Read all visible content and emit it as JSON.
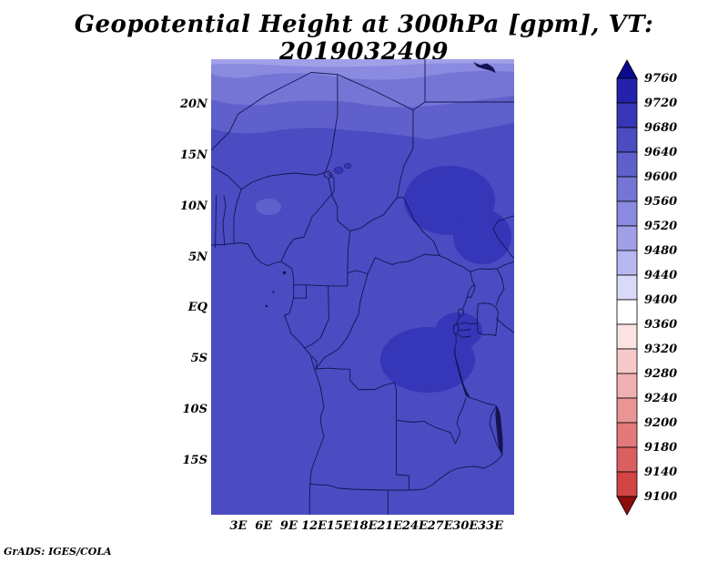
{
  "header": {
    "title": "Geopotential Height at 300hPa [gpm], VT: 2019032409"
  },
  "footer": {
    "credit": "GrADS: IGES/COLA"
  },
  "chart_data": {
    "type": "heatmap",
    "title": "Geopotential Height at 300hPa [gpm], VT: 2019032409",
    "variable": "Geopotential Height",
    "pressure_level": "300hPa",
    "units": "gpm",
    "valid_time": "2019032409",
    "xlabel": "",
    "ylabel": "",
    "x_axis": {
      "ticks": [
        "3E",
        "6E",
        "9E",
        "12E",
        "15E",
        "18E",
        "21E",
        "24E",
        "27E",
        "30E",
        "33E"
      ]
    },
    "y_axis": {
      "ticks": [
        "20N",
        "15N",
        "10N",
        "5N",
        "EQ",
        "5S",
        "10S",
        "15S"
      ]
    },
    "colorbar": {
      "labels": [
        "9760",
        "9720",
        "9680",
        "9640",
        "9600",
        "9560",
        "9520",
        "9480",
        "9440",
        "9400",
        "9360",
        "9320",
        "9280",
        "9240",
        "9200",
        "9180",
        "9140",
        "9100"
      ],
      "top_arrow_color": "#0a0a8e",
      "bottom_arrow_color": "#8e0e0e",
      "segment_colors": [
        "#2222ac",
        "#3636b8",
        "#4b4bc2",
        "#6060cc",
        "#7575d6",
        "#8a8ae0",
        "#a0a0e9",
        "#b8b8f1",
        "#d9d9f9",
        "#ffffff",
        "#fbe3e3",
        "#f6caca",
        "#f0b0b0",
        "#e99595",
        "#e27a7a",
        "#da6060",
        "#d14545"
      ]
    },
    "field": {
      "description": "Geopotential height rises from about 9480-9520 gpm at the northern edge (~24N) through banded contours to 9640-9680 gpm over most of equatorial and southern Africa, with 9680-9720 gpm pockets over the central-east and south-central interior.",
      "bands_north_to_south": [
        {
          "value_range": "9480-9520"
        },
        {
          "value_range": "9520-9560"
        },
        {
          "value_range": "9560-9600"
        },
        {
          "value_range": "9600-9640"
        },
        {
          "value_range": "9640-9680"
        },
        {
          "value_range": "9680-9720"
        }
      ]
    },
    "field_colors": {
      "sliver": "#a0a0e9",
      "band1": "#8a8ae0",
      "band2": "#7575d6",
      "band3": "#6060cc",
      "main": "#4b4bc2",
      "patch": "#3636b8",
      "line": "#141452"
    }
  }
}
